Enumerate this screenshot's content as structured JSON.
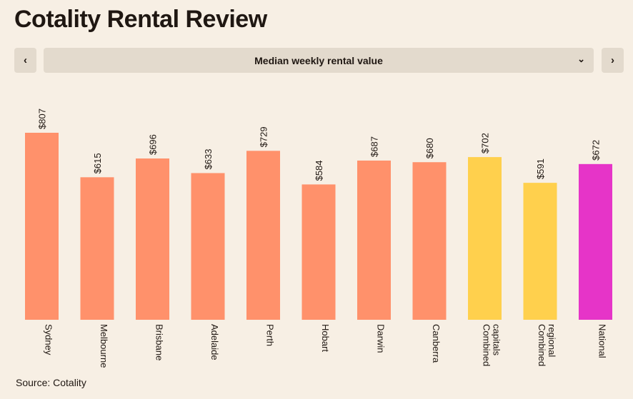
{
  "header": {
    "title": "Cotality Rental Review"
  },
  "controls": {
    "prev_icon": "chevron-left-icon",
    "next_icon": "chevron-right-icon",
    "dropdown_icon": "chevron-down-icon",
    "selected_metric": "Median weekly rental value",
    "prev_glyph": "‹",
    "next_glyph": "›",
    "dropdown_glyph": "⌄"
  },
  "footer": {
    "source": "Source: Cotality"
  },
  "colors": {
    "background": "#f7efe4",
    "control_bg": "#e3dacd",
    "capital_city": "#ff916b",
    "combined": "#ffd04d",
    "national": "#e634c8"
  },
  "chart_data": {
    "type": "bar",
    "title": "Median weekly rental value",
    "xlabel": "",
    "ylabel": "",
    "ylim": [
      0,
      807
    ],
    "grid": false,
    "legend": "none",
    "categories": [
      "Sydney",
      "Melbourne",
      "Brisbane",
      "Adelaide",
      "Perth",
      "Hobart",
      "Darwin",
      "Canberra",
      "Combined capitals",
      "Combined regional",
      "National"
    ],
    "category_lines": [
      [
        "Sydney"
      ],
      [
        "Melbourne"
      ],
      [
        "Brisbane"
      ],
      [
        "Adelaide"
      ],
      [
        "Perth"
      ],
      [
        "Hobart"
      ],
      [
        "Darwin"
      ],
      [
        "Canberra"
      ],
      [
        "Combined",
        "capitals"
      ],
      [
        "Combined",
        "regional"
      ],
      [
        "National"
      ]
    ],
    "values": [
      807,
      615,
      696,
      633,
      729,
      584,
      687,
      680,
      702,
      591,
      672
    ],
    "value_labels": [
      "$807",
      "$615",
      "$696",
      "$633",
      "$729",
      "$584",
      "$687",
      "$680",
      "$702",
      "$591",
      "$672"
    ],
    "bar_colors": [
      "#ff916b",
      "#ff916b",
      "#ff916b",
      "#ff916b",
      "#ff916b",
      "#ff916b",
      "#ff916b",
      "#ff916b",
      "#ffd04d",
      "#ffd04d",
      "#e634c8"
    ]
  }
}
